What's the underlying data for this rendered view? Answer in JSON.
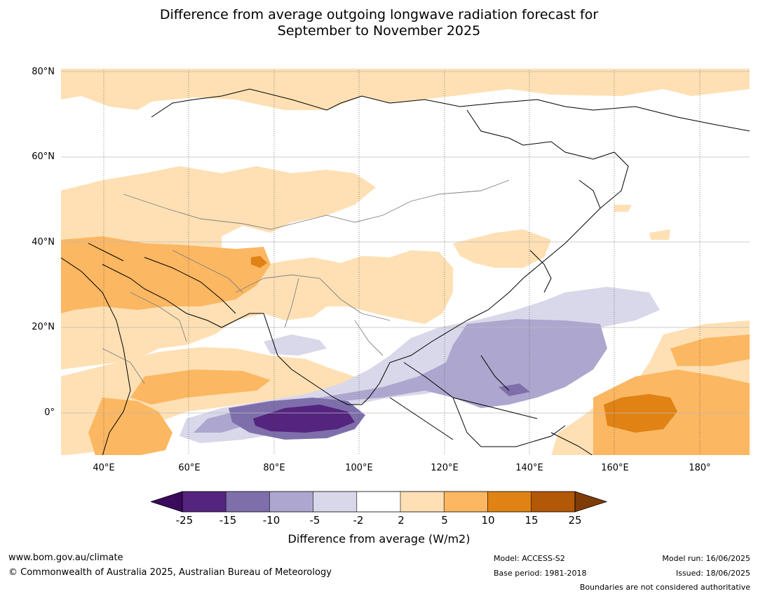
{
  "title": {
    "line1": "Difference from average outgoing longwave radiation forecast for",
    "line2": "September to November 2025"
  },
  "map": {
    "lat_ticks": [
      "80°N",
      "60°N",
      "40°N",
      "20°N",
      "0°"
    ],
    "lon_ticks": [
      "40°E",
      "60°E",
      "80°E",
      "100°E",
      "120°E",
      "140°E",
      "160°E",
      "180°"
    ],
    "extent": {
      "lon_min": 30,
      "lon_max": 192,
      "lat_min": -10,
      "lat_max": 80
    }
  },
  "colorbar": {
    "labels": [
      "-25",
      "-15",
      "-10",
      "-5",
      "-2",
      "2",
      "5",
      "10",
      "15",
      "25"
    ],
    "colors": [
      "#3a0a5c",
      "#54247f",
      "#7e6fab",
      "#ada7cf",
      "#d9d8ea",
      "#ffffff",
      "#fee0b4",
      "#fbb761",
      "#e08214",
      "#b35806",
      "#7f3b08"
    ],
    "title": "Difference from average (W/m2)"
  },
  "footer": {
    "url": "www.bom.gov.au/climate",
    "copyright": "© Commonwealth of Australia 2025, Australian Bureau of Meteorology",
    "model": "Model: ACCESS-S2",
    "base_period": "Base period: 1981-2018",
    "model_run": "Model run: 16/06/2025",
    "issued": "Issued: 18/06/2025",
    "disclaimer": "Boundaries are not considered authoritative"
  }
}
